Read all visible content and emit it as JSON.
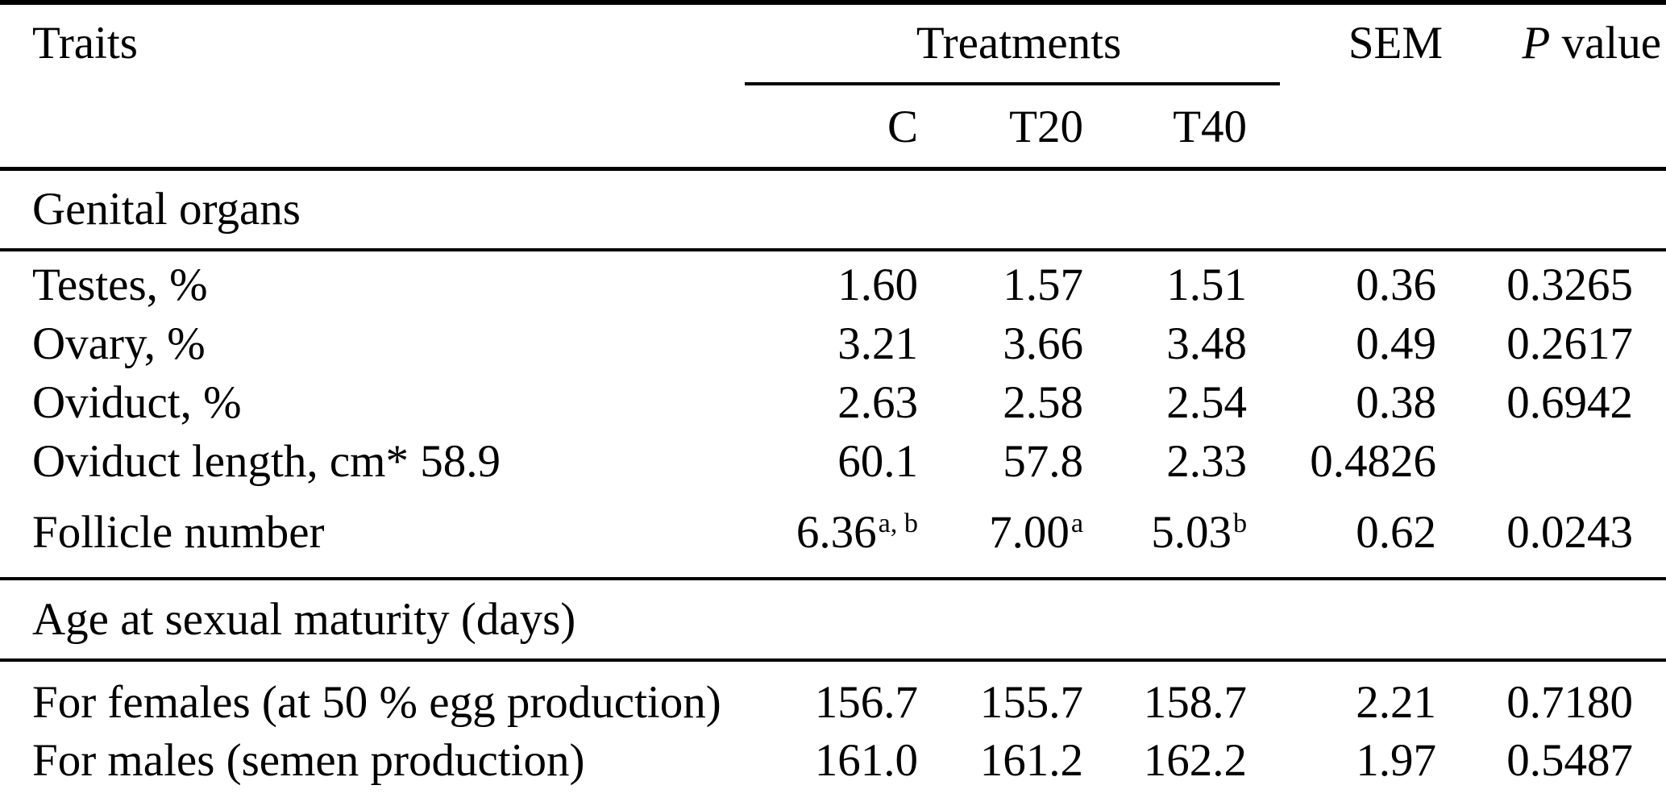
{
  "table": {
    "columns": {
      "traits": "Traits",
      "treatments": "Treatments",
      "treatment_levels": [
        "C",
        "T20",
        "T40"
      ],
      "sem": "SEM",
      "p_symbol": "P",
      "p_word": "value"
    },
    "sections": [
      {
        "title": "Genital organs",
        "rows": [
          {
            "trait": "Testes, %",
            "values": [
              {
                "v": "1.60"
              },
              {
                "v": "1.57"
              },
              {
                "v": "1.51"
              },
              {
                "v": "0.36"
              },
              {
                "v": "0.3265"
              }
            ]
          },
          {
            "trait": "Ovary, %",
            "values": [
              {
                "v": "3.21"
              },
              {
                "v": "3.66"
              },
              {
                "v": "3.48"
              },
              {
                "v": "0.49"
              },
              {
                "v": "0.2617"
              }
            ]
          },
          {
            "trait": "Oviduct, %",
            "values": [
              {
                "v": "2.63"
              },
              {
                "v": "2.58"
              },
              {
                "v": "2.54"
              },
              {
                "v": "0.38"
              },
              {
                "v": "0.6942"
              }
            ]
          },
          {
            "trait": "Oviduct length, cm* 58.9",
            "values": [
              {
                "v": "60.1"
              },
              {
                "v": "57.8"
              },
              {
                "v": "2.33"
              },
              {
                "v": "0.4826"
              },
              {
                "v": ""
              }
            ]
          },
          {
            "trait": "Follicle number",
            "values": [
              {
                "v": "6.36",
                "sup": "a, b"
              },
              {
                "v": "7.00",
                "sup": "a"
              },
              {
                "v": "5.03",
                "sup": "b"
              },
              {
                "v": "0.62"
              },
              {
                "v": "0.0243"
              }
            ]
          }
        ]
      },
      {
        "title": "Age at sexual maturity (days)",
        "rows": [
          {
            "trait": "For females (at 50 % egg production)",
            "values": [
              {
                "v": "156.7"
              },
              {
                "v": "155.7"
              },
              {
                "v": "158.7"
              },
              {
                "v": "2.21"
              },
              {
                "v": "0.7180"
              }
            ]
          },
          {
            "trait": "For males (semen production)",
            "values": [
              {
                "v": "161.0"
              },
              {
                "v": "161.2"
              },
              {
                "v": "162.2"
              },
              {
                "v": "1.97"
              },
              {
                "v": "0.5487"
              }
            ]
          }
        ]
      }
    ],
    "colors": {
      "text": "#000000",
      "background": "#ffffff",
      "rule": "#000000"
    }
  }
}
